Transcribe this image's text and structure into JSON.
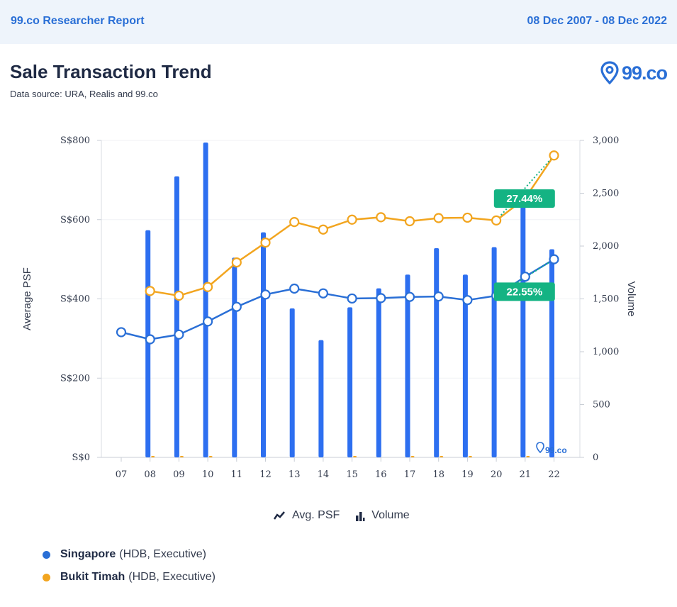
{
  "header": {
    "brand": "99.co Researcher Report",
    "date_range": "08 Dec 2007 - 08 Dec 2022"
  },
  "report": {
    "title": "Sale Transaction Trend",
    "source": "Data source: URA, Realis and 99.co"
  },
  "logo": {
    "text": "99.co",
    "watermark": "99.co"
  },
  "toggles": {
    "avg_psf": "Avg. PSF",
    "volume": "Volume"
  },
  "legend": [
    {
      "name": "Singapore",
      "detail": "(HDB, Executive)",
      "color": "#2a6fd6"
    },
    {
      "name": "Bukit Timah",
      "detail": "(HDB, Executive)",
      "color": "#f2a51f"
    }
  ],
  "colors": {
    "blue": "#2a6fd6",
    "orange": "#f2a51f",
    "badge": "#14b383",
    "bar": "#2d6ff0"
  },
  "chart_data": {
    "type": "line+bar",
    "categories": [
      "07",
      "08",
      "09",
      "10",
      "11",
      "12",
      "13",
      "14",
      "15",
      "16",
      "17",
      "18",
      "19",
      "20",
      "21",
      "22"
    ],
    "y_left": {
      "label": "Average PSF",
      "ticks": [
        "S$0",
        "S$200",
        "S$400",
        "S$600",
        "S$800"
      ],
      "range": [
        0,
        800
      ]
    },
    "y_right": {
      "label": "Volume",
      "ticks": [
        "0",
        "500",
        "1,000",
        "1,500",
        "2,000",
        "2,500",
        "3,000"
      ],
      "range": [
        0,
        3000
      ]
    },
    "series": [
      {
        "name": "Singapore",
        "kind": "line",
        "axis": "left",
        "color": "#2a6fd6",
        "values": [
          316,
          298,
          310,
          343,
          380,
          411,
          426,
          414,
          401,
          402,
          405,
          406,
          397,
          408,
          456,
          500
        ]
      },
      {
        "name": "Bukit Timah",
        "kind": "line",
        "axis": "left",
        "color": "#f2a51f",
        "values": [
          null,
          420,
          408,
          430,
          492,
          542,
          594,
          575,
          600,
          606,
          596,
          604,
          605,
          598,
          654,
          762
        ]
      },
      {
        "name": "Singapore",
        "kind": "bar",
        "axis": "right",
        "color": "#2d6ff0",
        "values": [
          0,
          2150,
          2660,
          2980,
          1890,
          2130,
          1410,
          1110,
          1420,
          1600,
          1730,
          1980,
          1730,
          1990,
          2440,
          1970
        ]
      },
      {
        "name": "Bukit Timah",
        "kind": "bar",
        "axis": "right",
        "color": "#f2a51f",
        "values": [
          0,
          3,
          8,
          3,
          0,
          0,
          0,
          0,
          3,
          0,
          3,
          3,
          3,
          0,
          3,
          0
        ]
      }
    ],
    "annotations": [
      {
        "text": "27.44%",
        "series": "Bukit Timah",
        "from": "20",
        "to": "22"
      },
      {
        "text": "22.55%",
        "series": "Singapore",
        "from": "20",
        "to": "22"
      }
    ]
  }
}
